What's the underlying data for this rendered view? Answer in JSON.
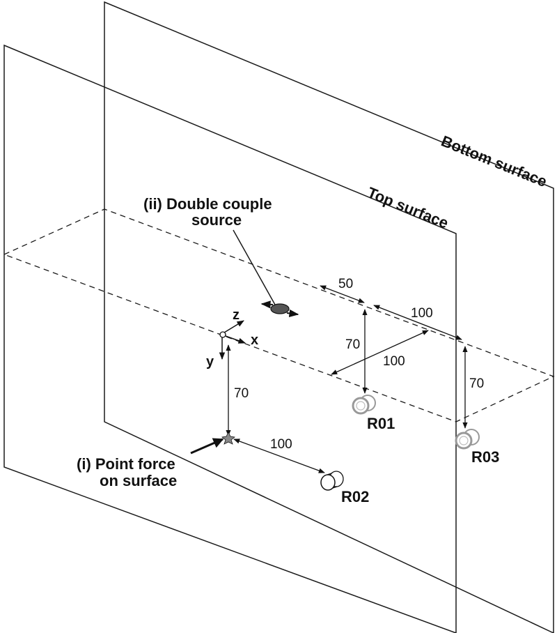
{
  "labels": {
    "bottom_surface": "Bottom surface",
    "top_surface": "Top surface",
    "double_couple_line1": "(ii) Double couple",
    "double_couple_line2": "source",
    "point_force_line1": "(i) Point force",
    "point_force_line2": "on surface"
  },
  "axes": {
    "x": "x",
    "y": "y",
    "z": "z"
  },
  "dimensions": {
    "d50": "50",
    "d100_top": "100",
    "d70_mid": "70",
    "d100_mid": "100",
    "d70_right": "70",
    "d70_left": "70",
    "d100_bottom": "100"
  },
  "receivers": {
    "r01": "R01",
    "r02": "R02",
    "r03": "R03"
  },
  "colors": {
    "line": "#1a1a1a",
    "receiver_gray": "#9a9a9a",
    "source_fill": "#555555"
  }
}
